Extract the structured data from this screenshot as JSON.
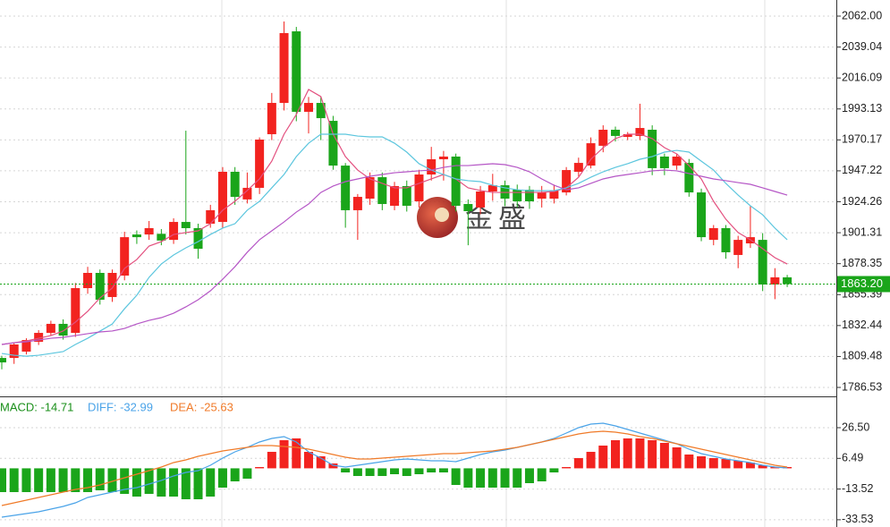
{
  "chart_data": [
    {
      "type": "candlestick",
      "ylim": [
        1779.9,
        2073.95
      ],
      "yticks": [
        {
          "value": 2062,
          "label": "2062.00"
        },
        2039.04,
        2016.09,
        1993.13,
        1970.17,
        1947.22,
        1924.26,
        1901.31,
        1878.35,
        1855.39,
        1832.44,
        1809.48,
        1786.53
      ],
      "grid": true,
      "up_color": "#f2231f",
      "down_color": "#1aa51a",
      "open": [
        1808.4,
        1808.4,
        1813.1,
        1820.4,
        1827,
        1833.7,
        1827,
        1860.2,
        1871.5,
        1853.6,
        1869.5,
        1900,
        1900,
        1900.5,
        1896,
        1909.3,
        1904.7,
        1908,
        1909.3,
        1946.5,
        1926,
        1934.6,
        1974.4,
        1997.6,
        2050.7,
        1991,
        1997.6,
        1984.3,
        1951.1,
        1918,
        1926.6,
        1942.5,
        1921.3,
        1935.9,
        1924.6,
        1944.5,
        1955.8,
        1957.8,
        1922.6,
        1920,
        1931.9,
        1936.5,
        1933.2,
        1933.2,
        1926.6,
        1926.6,
        1931.2,
        1946.5,
        1951.1,
        1965.8,
        1977.7,
        1972.4,
        1973.1,
        1977.7,
        1957.8,
        1951.1,
        1953.1,
        1931.2,
        1896,
        1904.7,
        1884.8,
        1893.4,
        1896,
        1862.9,
        1868.2
      ],
      "high": [
        1810,
        1820,
        1823,
        1829,
        1836,
        1837,
        1864,
        1876,
        1874,
        1874,
        1902,
        1903,
        1910,
        1904,
        1912,
        1977,
        1908,
        1922,
        1950,
        1950,
        1946,
        1972,
        2005,
        2058,
        2054,
        2002,
        2002,
        1988,
        1953,
        1930,
        1946,
        1946,
        1939,
        1940,
        1948,
        1965,
        1962,
        1960,
        1926,
        1936,
        1945,
        1940,
        1937,
        1936,
        1936,
        1937,
        1950,
        1957,
        1972,
        1981,
        1980,
        1976,
        1997,
        1981,
        1960,
        1960,
        1956,
        1934,
        1907,
        1907,
        1899,
        1921,
        1901,
        1875,
        1870
      ],
      "low": [
        1800,
        1804,
        1811,
        1818,
        1825,
        1822,
        1824,
        1856,
        1848,
        1850,
        1866,
        1893,
        1896,
        1892,
        1893,
        1900,
        1882,
        1905,
        1905,
        1922,
        1923,
        1930,
        1970,
        1992,
        1984,
        1975,
        1970,
        1948,
        1905,
        1896,
        1922,
        1918,
        1918,
        1917,
        1920,
        1940,
        1940,
        1917,
        1892,
        1915,
        1925,
        1921,
        1920,
        1919,
        1920,
        1923,
        1929,
        1943,
        1949,
        1961,
        1969,
        1970,
        1970,
        1944,
        1944,
        1948,
        1928,
        1895,
        1892,
        1882,
        1875,
        1890,
        1858,
        1852,
        1861
      ],
      "close": [
        1805.1,
        1818.4,
        1821.7,
        1827,
        1833.7,
        1825,
        1860.2,
        1871.5,
        1851.6,
        1871.5,
        1898,
        1898,
        1904.7,
        1895.5,
        1909.3,
        1904.7,
        1889.4,
        1918,
        1946.5,
        1927.9,
        1934.6,
        1970.4,
        1997.6,
        2049.4,
        1991,
        1997.6,
        1986.3,
        1951.1,
        1918,
        1927.9,
        1942.5,
        1922.6,
        1935.9,
        1921.3,
        1944.5,
        1955.8,
        1957.8,
        1921.3,
        1917.3,
        1931.9,
        1936.5,
        1926.6,
        1924.6,
        1924.6,
        1931.2,
        1932.6,
        1947.8,
        1953.1,
        1967.7,
        1977.7,
        1973.1,
        1974.4,
        1979,
        1949.2,
        1949.2,
        1957.8,
        1931.2,
        1898,
        1904.7,
        1886.8,
        1896,
        1898,
        1862.9,
        1868.2,
        1863.2
      ],
      "series": [
        {
          "color": "#e3507f",
          "values": [
            1818.4,
            1819.7,
            1821.0,
            1823.0,
            1825.0,
            1828.4,
            1835.0,
            1843.0,
            1852.9,
            1860.2,
            1874.8,
            1881.4,
            1891.4,
            1894.7,
            1900.0,
            1901.4,
            1902.7,
            1908.0,
            1918.0,
            1924.6,
            1932.6,
            1941.2,
            1954.4,
            1974.4,
            1989.0,
            2007.6,
            2002.3,
            1974.4,
            1957.8,
            1947.8,
            1941.2,
            1937.9,
            1934.6,
            1934.6,
            1937.9,
            1941.2,
            1944.5,
            1941.2,
            1934.6,
            1932.6,
            1931.2,
            1931.2,
            1931.2,
            1931.2,
            1931.2,
            1931.9,
            1934.6,
            1942.5,
            1955.8,
            1964.4,
            1971.1,
            1974.4,
            1974.4,
            1971.1,
            1964.4,
            1959.8,
            1951.1,
            1941.2,
            1924.6,
            1911.3,
            1901.4,
            1896.1,
            1889.4,
            1882.8,
            1878.1
          ]
        },
        {
          "color": "#5cc6de",
          "values": [
            1811.7,
            1810.4,
            1809.7,
            1810.4,
            1811.7,
            1813.1,
            1818.4,
            1823.0,
            1828.3,
            1833.6,
            1844.9,
            1854.9,
            1868.2,
            1878.1,
            1884.8,
            1890.1,
            1894.7,
            1900.0,
            1904.7,
            1908.0,
            1918.0,
            1924.6,
            1934.6,
            1944.5,
            1957.8,
            1967.7,
            1974.4,
            1974.4,
            1974.4,
            1973.0,
            1972.4,
            1972.4,
            1967.7,
            1961.1,
            1952.5,
            1947.8,
            1944.5,
            1941.2,
            1939.9,
            1939.2,
            1936.5,
            1934.6,
            1933.2,
            1932.5,
            1932.5,
            1932.5,
            1934.6,
            1937.9,
            1942.5,
            1946.5,
            1949.8,
            1952.5,
            1955.8,
            1957.8,
            1961.1,
            1962.4,
            1961.1,
            1954.4,
            1947.8,
            1937.9,
            1929.2,
            1921.3,
            1914.6,
            1904.7,
            1896.1
          ]
        },
        {
          "color": "#b556c6",
          "values": [
            1818.4,
            1819.7,
            1820.4,
            1821.7,
            1823.0,
            1823.7,
            1825.0,
            1826.4,
            1827.7,
            1828.4,
            1830.3,
            1833.6,
            1836.3,
            1838.3,
            1841.6,
            1846.3,
            1851.6,
            1858.2,
            1866.8,
            1876.1,
            1886.8,
            1896.1,
            1902.7,
            1909.3,
            1916.6,
            1922.6,
            1931.2,
            1935.9,
            1939.2,
            1941.2,
            1943.2,
            1944.5,
            1945.8,
            1946.5,
            1947.2,
            1947.8,
            1949.8,
            1951.1,
            1951.1,
            1951.8,
            1952.5,
            1951.8,
            1949.8,
            1946.5,
            1941.2,
            1936.5,
            1933.2,
            1934.6,
            1937.9,
            1941.2,
            1943.2,
            1944.5,
            1945.8,
            1947.2,
            1947.8,
            1947.2,
            1945.2,
            1943.2,
            1941.2,
            1939.9,
            1938.5,
            1937.2,
            1934.6,
            1931.9,
            1929.2
          ]
        }
      ],
      "last_price": {
        "value": 1863.2,
        "label": "1863.20"
      },
      "last_price_color": "#1aa51a",
      "watermark": "金盛"
    },
    {
      "type": "macd",
      "ylim": [
        -38.26,
        45.75
      ],
      "yticks": [
        {
          "value": 26.5,
          "label": "26.50"
        },
        6.49,
        -13.52,
        -33.53
      ],
      "grid": true,
      "up_color": "#f2231f",
      "down_color": "#1aa51a",
      "legend": [
        {
          "text": "MACD: -14.71",
          "color": "#1a8f1a"
        },
        {
          "text": "DIFF: -32.99",
          "color": "#4aa3e8"
        },
        {
          "text": "DEA: -25.63",
          "color": "#f07a28"
        }
      ],
      "values": [
        -15.5,
        -15.5,
        -15.5,
        -15.5,
        -15.5,
        -15.5,
        -15.5,
        -15.5,
        -14.34,
        -15.5,
        -16.67,
        -18.42,
        -16.67,
        -18.42,
        -18.42,
        -20.17,
        -20.17,
        -18.42,
        -12.59,
        -8.5,
        -6.75,
        0.83,
        10.75,
        18.33,
        19.5,
        10.75,
        7.83,
        3.16,
        -2.67,
        -5.0,
        -5.0,
        -5.0,
        -3.84,
        -5.0,
        -3.84,
        -2.67,
        -2.67,
        -10.84,
        -12.59,
        -12.59,
        -12.59,
        -12.59,
        -12.59,
        -9.67,
        -8.5,
        -2.67,
        0.83,
        6.66,
        10.75,
        14.83,
        18.33,
        19.5,
        19.5,
        18.33,
        16.58,
        13.67,
        9.0,
        7.83,
        6.66,
        6.08,
        4.91,
        3.75,
        2.0,
        0.83,
        0.83
      ],
      "series": [
        {
          "color": "#4aa3e8",
          "values": [
            -31.84,
            -30.67,
            -29.51,
            -28.34,
            -26.59,
            -24.84,
            -22.51,
            -19.01,
            -17.26,
            -15.5,
            -13.75,
            -12.59,
            -10.25,
            -7.92,
            -5.0,
            -2.67,
            -1.5,
            2.0,
            6.66,
            10.75,
            13.67,
            17.17,
            19.5,
            20.67,
            17.17,
            10.75,
            6.66,
            2.0,
            0.83,
            2.0,
            3.16,
            4.33,
            5.5,
            6.08,
            5.5,
            4.91,
            4.91,
            4.33,
            6.66,
            9.0,
            10.75,
            11.91,
            13.67,
            15.42,
            17.17,
            19.5,
            23.0,
            26.5,
            28.83,
            29.42,
            27.67,
            25.33,
            23.0,
            20.67,
            18.33,
            16.0,
            12.5,
            9.58,
            7.83,
            6.08,
            4.91,
            3.75,
            2.0,
            0.83,
            0.25
          ]
        },
        {
          "color": "#f07a28",
          "values": [
            -24.26,
            -22.51,
            -20.76,
            -19.01,
            -17.26,
            -15.5,
            -13.75,
            -12.59,
            -10.84,
            -8.5,
            -6.17,
            -3.84,
            -1.5,
            0.83,
            3.75,
            5.5,
            7.83,
            9.58,
            11.33,
            12.5,
            13.67,
            14.83,
            14.83,
            14.25,
            13.67,
            12.5,
            10.75,
            9.0,
            7.25,
            6.08,
            6.08,
            6.66,
            7.25,
            7.83,
            8.41,
            9.0,
            9.58,
            9.58,
            10.16,
            10.75,
            11.33,
            12.5,
            13.67,
            15.42,
            17.17,
            18.92,
            20.67,
            22.42,
            23.58,
            24.17,
            23.58,
            22.42,
            20.67,
            19.5,
            17.75,
            16.0,
            14.25,
            12.5,
            10.75,
            9.0,
            7.25,
            5.5,
            3.75,
            2.0,
            0.83
          ]
        }
      ]
    }
  ]
}
